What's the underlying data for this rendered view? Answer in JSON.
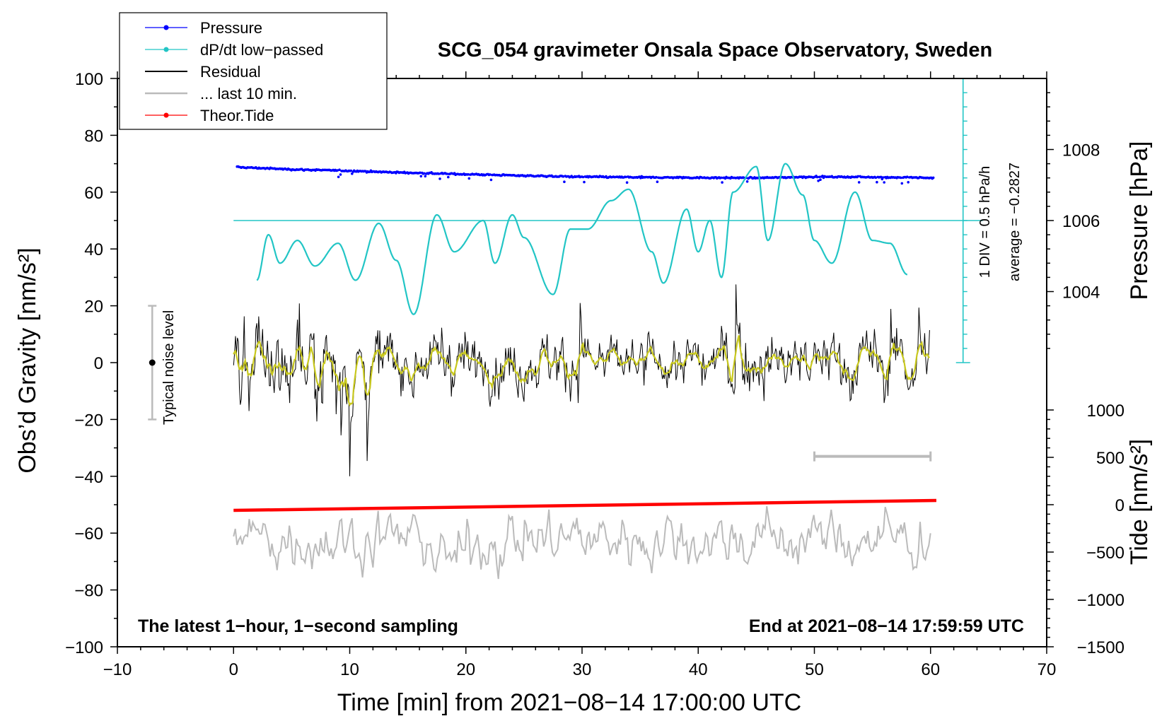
{
  "chart_data": {
    "type": "line",
    "title": "SCG_054 gravimeter Onsala Space Observatory, Sweden",
    "xlabel": "Time [min] from 2021−08−14 17:00:00 UTC",
    "ylabel_left": "Obs’d Gravity [nm/s²]",
    "ylabel_right_top": "Pressure [hPa]",
    "ylabel_right_bottom": "Tide [nm/s²]",
    "xlim": [
      -10,
      70
    ],
    "ylim": [
      -100,
      100
    ],
    "x_ticks": [
      "−10",
      "0",
      "10",
      "20",
      "30",
      "40",
      "50",
      "60",
      "70"
    ],
    "y_ticks": [
      "−100",
      "−80",
      "−60",
      "−40",
      "−20",
      "0",
      "20",
      "40",
      "60",
      "80",
      "100"
    ],
    "pressure_ticks": [
      "1004",
      "1006",
      "1008"
    ],
    "tide_ticks": [
      "−1500",
      "−1000",
      "−500",
      "0",
      "500",
      "1000"
    ],
    "annotation_left": "The latest 1−hour, 1−second sampling",
    "annotation_right": "End at 2021−08−14 17:59:59 UTC",
    "noise_label": "Typical noise level",
    "noise_range": [
      -20,
      20
    ],
    "dpdt_scale_label": "1 DIV = 0.5 hPa/h",
    "dpdt_average_label": "average = −0.2827",
    "legend": [
      {
        "label": "Pressure",
        "color": "#0000ff"
      },
      {
        "label": "dP/dt low−passed",
        "color": "#22c5c5"
      },
      {
        "label": "Residual",
        "color": "#000000"
      },
      {
        "label": "... last 10 min.",
        "color": "#bbbbbb"
      },
      {
        "label": "Theor.Tide",
        "color": "#ff0000"
      }
    ],
    "series": [
      {
        "name": "Pressure",
        "color": "#0000ff",
        "x": [
          0.3,
          5,
          10,
          15,
          20,
          25,
          30,
          35,
          40,
          45,
          50,
          55,
          60.3
        ],
        "y": [
          68.8,
          68,
          67.5,
          66.8,
          66.3,
          65.8,
          65.4,
          65.2,
          65.1,
          65,
          65.4,
          65.3,
          65
        ]
      },
      {
        "name": "dP/dt low−passed",
        "color": "#22c5c5",
        "x": [
          2,
          3,
          4,
          5.5,
          7,
          9,
          10.5,
          12.5,
          14,
          15.5,
          17.5,
          19,
          21.5,
          22.5,
          24,
          25,
          27.5,
          29,
          30.5,
          32.5,
          34,
          36,
          37,
          39,
          40,
          41,
          42,
          43,
          45,
          46,
          47.5,
          49,
          50,
          51.5,
          53.5,
          55,
          56.5,
          58
        ],
        "y": [
          29,
          45,
          35,
          43,
          34,
          42,
          29,
          49,
          36,
          17,
          52,
          39,
          50,
          35,
          52,
          44,
          24,
          47,
          47,
          57,
          61,
          39,
          28,
          54,
          39,
          50,
          30,
          60,
          69,
          43,
          70,
          59,
          43,
          35,
          60,
          43,
          42,
          31
        ]
      },
      {
        "name": "Theor.Tide",
        "color": "#ff0000",
        "x": [
          0,
          60.5
        ],
        "y": [
          -52,
          -48.5
        ]
      }
    ]
  }
}
